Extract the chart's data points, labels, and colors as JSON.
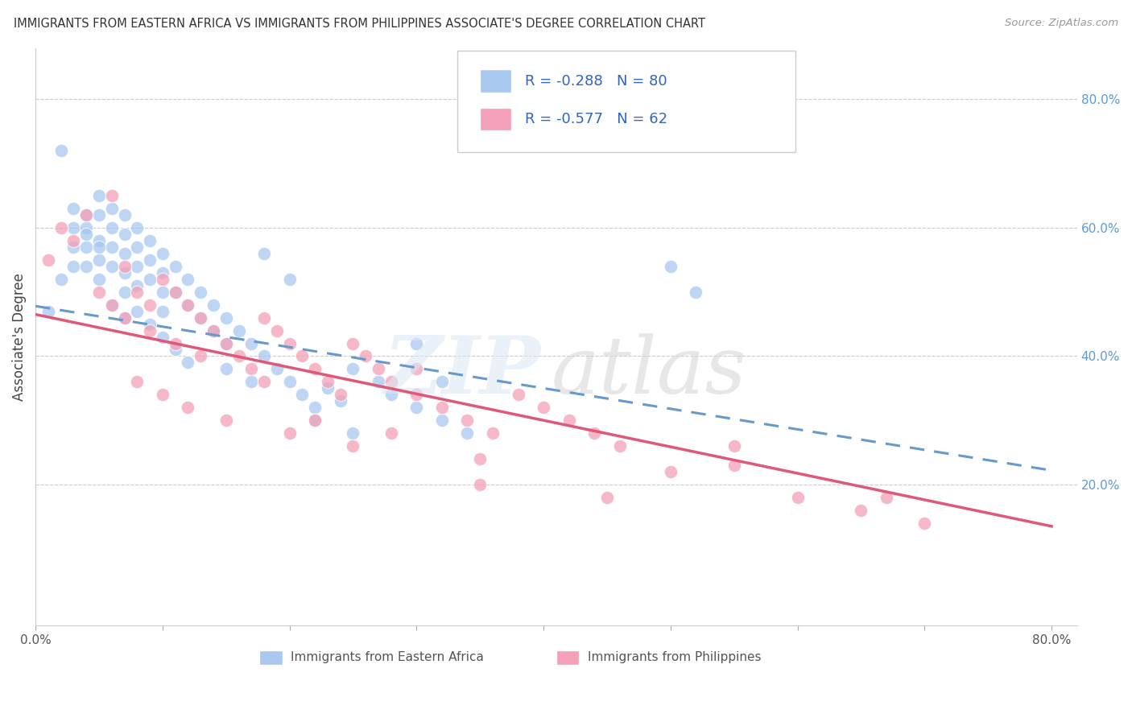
{
  "title": "IMMIGRANTS FROM EASTERN AFRICA VS IMMIGRANTS FROM PHILIPPINES ASSOCIATE'S DEGREE CORRELATION CHART",
  "source": "Source: ZipAtlas.com",
  "ylabel": "Associate's Degree",
  "legend_label1": "Immigrants from Eastern Africa",
  "legend_label2": "Immigrants from Philippines",
  "R1": -0.288,
  "N1": 80,
  "R2": -0.577,
  "N2": 62,
  "xlim": [
    0.0,
    0.82
  ],
  "ylim": [
    -0.02,
    0.88
  ],
  "yticks_right": [
    0.2,
    0.4,
    0.6,
    0.8
  ],
  "ytick_right_labels": [
    "20.0%",
    "40.0%",
    "60.0%",
    "80.0%"
  ],
  "color1": "#a8c8f0",
  "color2": "#f4a0b8",
  "line_color1": "#6699cc",
  "line_color2": "#e05878",
  "grid_color": "#cccccc",
  "blue_line_start_y": 0.478,
  "blue_line_end_y": 0.222,
  "pink_line_start_y": 0.465,
  "pink_line_end_y": 0.135,
  "blue_scatter_x": [
    0.01,
    0.02,
    0.02,
    0.03,
    0.03,
    0.03,
    0.04,
    0.04,
    0.04,
    0.04,
    0.05,
    0.05,
    0.05,
    0.05,
    0.05,
    0.06,
    0.06,
    0.06,
    0.06,
    0.07,
    0.07,
    0.07,
    0.07,
    0.07,
    0.08,
    0.08,
    0.08,
    0.08,
    0.09,
    0.09,
    0.09,
    0.1,
    0.1,
    0.1,
    0.1,
    0.11,
    0.11,
    0.12,
    0.12,
    0.13,
    0.13,
    0.14,
    0.14,
    0.15,
    0.15,
    0.16,
    0.17,
    0.18,
    0.19,
    0.2,
    0.21,
    0.22,
    0.23,
    0.24,
    0.25,
    0.27,
    0.28,
    0.3,
    0.32,
    0.34,
    0.3,
    0.32,
    0.22,
    0.25,
    0.18,
    0.2,
    0.5,
    0.52,
    0.15,
    0.17,
    0.08,
    0.09,
    0.06,
    0.07,
    0.1,
    0.11,
    0.12,
    0.04,
    0.05,
    0.03
  ],
  "blue_scatter_y": [
    0.47,
    0.72,
    0.52,
    0.6,
    0.57,
    0.54,
    0.62,
    0.6,
    0.57,
    0.54,
    0.65,
    0.62,
    0.58,
    0.55,
    0.52,
    0.63,
    0.6,
    0.57,
    0.54,
    0.62,
    0.59,
    0.56,
    0.53,
    0.5,
    0.6,
    0.57,
    0.54,
    0.51,
    0.58,
    0.55,
    0.52,
    0.56,
    0.53,
    0.5,
    0.47,
    0.54,
    0.5,
    0.52,
    0.48,
    0.5,
    0.46,
    0.48,
    0.44,
    0.46,
    0.42,
    0.44,
    0.42,
    0.4,
    0.38,
    0.36,
    0.34,
    0.32,
    0.35,
    0.33,
    0.38,
    0.36,
    0.34,
    0.32,
    0.3,
    0.28,
    0.42,
    0.36,
    0.3,
    0.28,
    0.56,
    0.52,
    0.54,
    0.5,
    0.38,
    0.36,
    0.47,
    0.45,
    0.48,
    0.46,
    0.43,
    0.41,
    0.39,
    0.59,
    0.57,
    0.63
  ],
  "pink_scatter_x": [
    0.01,
    0.02,
    0.03,
    0.04,
    0.05,
    0.06,
    0.07,
    0.08,
    0.09,
    0.1,
    0.11,
    0.12,
    0.13,
    0.14,
    0.15,
    0.16,
    0.17,
    0.18,
    0.19,
    0.2,
    0.21,
    0.22,
    0.23,
    0.24,
    0.25,
    0.26,
    0.27,
    0.28,
    0.3,
    0.32,
    0.34,
    0.36,
    0.38,
    0.4,
    0.42,
    0.44,
    0.46,
    0.5,
    0.55,
    0.6,
    0.65,
    0.7,
    0.08,
    0.1,
    0.12,
    0.15,
    0.2,
    0.25,
    0.3,
    0.35,
    0.06,
    0.07,
    0.09,
    0.11,
    0.13,
    0.18,
    0.22,
    0.28,
    0.35,
    0.45,
    0.55,
    0.67
  ],
  "pink_scatter_y": [
    0.55,
    0.6,
    0.58,
    0.62,
    0.5,
    0.65,
    0.54,
    0.5,
    0.48,
    0.52,
    0.5,
    0.48,
    0.46,
    0.44,
    0.42,
    0.4,
    0.38,
    0.46,
    0.44,
    0.42,
    0.4,
    0.38,
    0.36,
    0.34,
    0.42,
    0.4,
    0.38,
    0.36,
    0.34,
    0.32,
    0.3,
    0.28,
    0.34,
    0.32,
    0.3,
    0.28,
    0.26,
    0.22,
    0.26,
    0.18,
    0.16,
    0.14,
    0.36,
    0.34,
    0.32,
    0.3,
    0.28,
    0.26,
    0.38,
    0.24,
    0.48,
    0.46,
    0.44,
    0.42,
    0.4,
    0.36,
    0.3,
    0.28,
    0.2,
    0.18,
    0.23,
    0.18
  ]
}
